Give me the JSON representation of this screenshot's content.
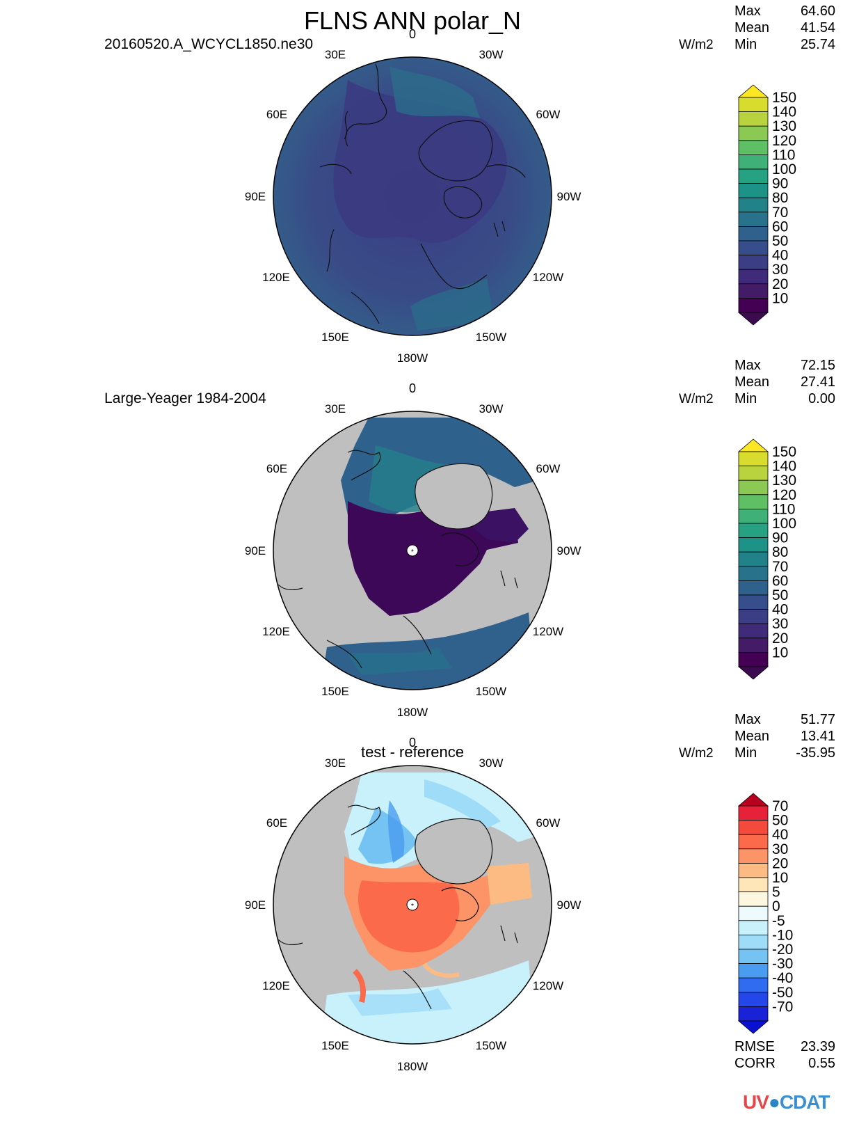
{
  "title": "FLNS ANN polar_N",
  "logo": {
    "part1": "UV",
    "part2": "CDAT"
  },
  "lon_labels": {
    "top": "0",
    "r30e": "30E",
    "r30w": "30W",
    "r60e": "60E",
    "r60w": "60W",
    "r90e": "90E",
    "r90w": "90W",
    "r120e": "120E",
    "r120w": "120W",
    "r150e": "150E",
    "r150w": "150W",
    "bottom": "180W"
  },
  "panels": [
    {
      "name": "20160520.A_WCYCL1850.ne30",
      "units": "W/m2",
      "stats": {
        "max_label": "Max",
        "max": "64.60",
        "mean_label": "Mean",
        "mean": "41.54",
        "min_label": "Min",
        "min": "25.74"
      },
      "colorbar": {
        "labels": [
          "150",
          "140",
          "130",
          "120",
          "110",
          "100",
          "90",
          "80",
          "70",
          "60",
          "50",
          "40",
          "30",
          "20",
          "10"
        ],
        "colors": [
          "#d7dc2d",
          "#b8d33e",
          "#8cc954",
          "#5fbf65",
          "#3fb178",
          "#26a181",
          "#1d9287",
          "#218289",
          "#28728b",
          "#2f618c",
          "#364e8b",
          "#3b3d85",
          "#402b7a",
          "#431b67",
          "#440154"
        ],
        "top_color": "#fde725",
        "bottom_color": "#3b0a4f"
      }
    },
    {
      "name": "Large-Yeager 1984-2004",
      "units": "W/m2",
      "stats": {
        "max_label": "Max",
        "max": "72.15",
        "mean_label": "Mean",
        "mean": "27.41",
        "min_label": "Min",
        "min": "0.00"
      },
      "colorbar": {
        "labels": [
          "150",
          "140",
          "130",
          "120",
          "110",
          "100",
          "90",
          "80",
          "70",
          "60",
          "50",
          "40",
          "30",
          "20",
          "10"
        ],
        "colors": [
          "#d7dc2d",
          "#b8d33e",
          "#8cc954",
          "#5fbf65",
          "#3fb178",
          "#26a181",
          "#1d9287",
          "#218289",
          "#28728b",
          "#2f618c",
          "#364e8b",
          "#3b3d85",
          "#402b7a",
          "#431b67",
          "#440154"
        ],
        "top_color": "#fde725",
        "bottom_color": "#3b0a4f"
      }
    },
    {
      "name": "test - reference",
      "units": "W/m2",
      "stats": {
        "max_label": "Max",
        "max": "51.77",
        "mean_label": "Mean",
        "mean": "13.41",
        "min_label": "Min",
        "min": "-35.95"
      },
      "metrics": {
        "rmse_label": "RMSE",
        "rmse": "23.39",
        "corr_label": "CORR",
        "corr": "0.55"
      },
      "colorbar": {
        "labels": [
          "70",
          "50",
          "40",
          "30",
          "20",
          "10",
          "5",
          "0",
          "-5",
          "-10",
          "-20",
          "-30",
          "-40",
          "-50",
          "-70"
        ],
        "colors": [
          "#e8213a",
          "#f44a3c",
          "#fb6a4a",
          "#fc9468",
          "#fdbb84",
          "#fee6b8",
          "#fdf7e0",
          "#edfbfc",
          "#c8f1fb",
          "#9fdcf7",
          "#74c3f3",
          "#4a9cf0",
          "#2f6cf0",
          "#2347e8",
          "#1a22d8"
        ],
        "top_color": "#b8001f",
        "bottom_color": "#0a10d0"
      }
    }
  ]
}
